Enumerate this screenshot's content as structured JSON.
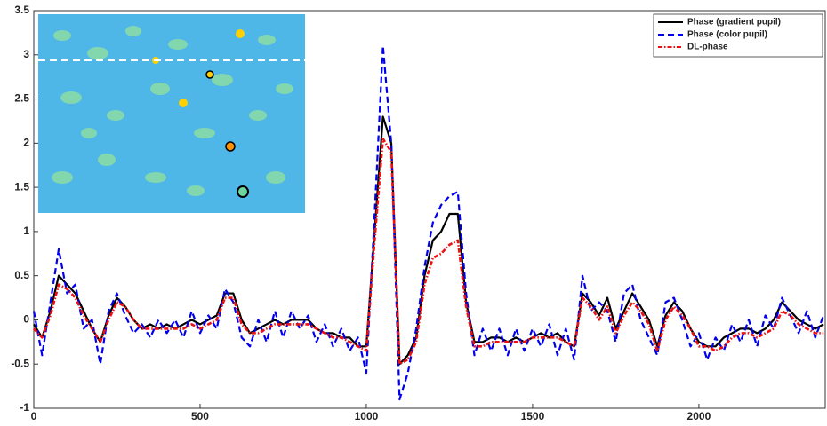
{
  "chart_data": {
    "type": "line",
    "x": [
      0,
      25,
      50,
      75,
      100,
      125,
      150,
      175,
      200,
      225,
      250,
      275,
      300,
      325,
      350,
      375,
      400,
      425,
      450,
      475,
      500,
      525,
      550,
      575,
      600,
      625,
      650,
      675,
      700,
      725,
      750,
      775,
      800,
      825,
      850,
      875,
      900,
      925,
      950,
      975,
      1000,
      1025,
      1050,
      1075,
      1100,
      1125,
      1150,
      1175,
      1200,
      1225,
      1250,
      1275,
      1300,
      1325,
      1350,
      1375,
      1400,
      1425,
      1450,
      1475,
      1500,
      1525,
      1550,
      1575,
      1600,
      1625,
      1650,
      1675,
      1700,
      1725,
      1750,
      1775,
      1800,
      1825,
      1850,
      1875,
      1900,
      1925,
      1950,
      1975,
      2000,
      2025,
      2050,
      2075,
      2100,
      2125,
      2150,
      2175,
      2200,
      2225,
      2250,
      2275,
      2300,
      2325,
      2350,
      2375
    ],
    "series": [
      {
        "name": "Phase (gradient pupil)",
        "color": "#000000",
        "dash": "solid",
        "values": [
          -0.05,
          -0.2,
          0.1,
          0.5,
          0.4,
          0.3,
          0.1,
          -0.1,
          -0.25,
          0.05,
          0.25,
          0.15,
          0.0,
          -0.1,
          -0.05,
          -0.1,
          -0.05,
          -0.1,
          -0.05,
          0.0,
          -0.05,
          0.0,
          0.05,
          0.3,
          0.3,
          0.0,
          -0.15,
          -0.1,
          -0.05,
          0.0,
          -0.05,
          0.0,
          0.0,
          0.0,
          -0.1,
          -0.15,
          -0.15,
          -0.2,
          -0.2,
          -0.3,
          -0.3,
          1.0,
          2.3,
          2.0,
          -0.5,
          -0.4,
          -0.2,
          0.5,
          0.9,
          1.0,
          1.2,
          1.2,
          0.2,
          -0.25,
          -0.25,
          -0.2,
          -0.2,
          -0.25,
          -0.2,
          -0.25,
          -0.2,
          -0.15,
          -0.2,
          -0.15,
          -0.25,
          -0.3,
          0.3,
          0.2,
          0.05,
          0.25,
          -0.1,
          0.1,
          0.3,
          0.15,
          0.0,
          -0.3,
          0.05,
          0.2,
          0.1,
          -0.1,
          -0.25,
          -0.3,
          -0.3,
          -0.2,
          -0.15,
          -0.1,
          -0.1,
          -0.15,
          -0.1,
          0.0,
          0.2,
          0.1,
          0.0,
          -0.05,
          -0.1,
          -0.05
        ]
      },
      {
        "name": "Phase (color pupil)",
        "color": "#0000ee",
        "dash": "dashed",
        "values": [
          0.1,
          -0.4,
          0.2,
          0.8,
          0.3,
          0.4,
          -0.1,
          0.0,
          -0.5,
          0.1,
          0.3,
          0.05,
          -0.15,
          -0.05,
          -0.2,
          0.0,
          -0.15,
          0.0,
          -0.2,
          0.1,
          -0.15,
          0.05,
          -0.1,
          0.35,
          0.2,
          -0.2,
          -0.3,
          0.0,
          -0.25,
          0.1,
          -0.2,
          0.1,
          -0.1,
          0.05,
          -0.25,
          -0.05,
          -0.3,
          -0.1,
          -0.35,
          -0.2,
          -0.6,
          1.2,
          3.1,
          2.0,
          -0.9,
          -0.6,
          -0.1,
          0.6,
          1.1,
          1.3,
          1.4,
          1.45,
          0.3,
          -0.4,
          -0.1,
          -0.35,
          -0.1,
          -0.4,
          -0.1,
          -0.35,
          -0.1,
          -0.3,
          -0.05,
          -0.4,
          -0.1,
          -0.45,
          0.5,
          0.1,
          0.2,
          0.1,
          -0.25,
          0.3,
          0.4,
          0.0,
          -0.2,
          -0.4,
          0.2,
          0.25,
          0.0,
          -0.3,
          -0.15,
          -0.45,
          -0.2,
          -0.35,
          -0.05,
          -0.25,
          0.0,
          -0.3,
          0.05,
          -0.1,
          0.25,
          0.05,
          -0.15,
          0.1,
          -0.2,
          0.05
        ]
      },
      {
        "name": "DL-phase",
        "color": "#ee1111",
        "dash": "dashdot",
        "values": [
          -0.1,
          -0.2,
          0.05,
          0.4,
          0.35,
          0.25,
          0.05,
          -0.1,
          -0.25,
          0.0,
          0.2,
          0.15,
          0.0,
          -0.1,
          -0.1,
          -0.1,
          -0.1,
          -0.1,
          -0.1,
          -0.05,
          -0.1,
          -0.05,
          0.0,
          0.25,
          0.25,
          -0.05,
          -0.15,
          -0.15,
          -0.1,
          -0.05,
          -0.05,
          -0.05,
          -0.05,
          -0.05,
          -0.1,
          -0.15,
          -0.2,
          -0.2,
          -0.25,
          -0.3,
          -0.35,
          0.9,
          2.05,
          1.9,
          -0.5,
          -0.45,
          -0.25,
          0.4,
          0.7,
          0.75,
          0.85,
          0.9,
          0.15,
          -0.3,
          -0.3,
          -0.25,
          -0.25,
          -0.25,
          -0.25,
          -0.25,
          -0.2,
          -0.2,
          -0.2,
          -0.2,
          -0.25,
          -0.3,
          0.25,
          0.15,
          0.0,
          0.15,
          -0.15,
          0.05,
          0.2,
          0.1,
          -0.05,
          -0.35,
          0.0,
          0.15,
          0.05,
          -0.1,
          -0.3,
          -0.3,
          -0.35,
          -0.3,
          -0.2,
          -0.15,
          -0.15,
          -0.2,
          -0.15,
          -0.1,
          0.1,
          0.05,
          -0.05,
          -0.1,
          -0.15,
          -0.15
        ]
      }
    ],
    "xlim": [
      0,
      2380
    ],
    "ylim": [
      -1,
      3.5
    ],
    "xticks": [
      0,
      500,
      1000,
      1500,
      2000
    ],
    "yticks": [
      -1,
      -0.5,
      0,
      0.5,
      1,
      1.5,
      2,
      2.5,
      3,
      3.5
    ],
    "grid": false,
    "legend": "upper right"
  }
}
